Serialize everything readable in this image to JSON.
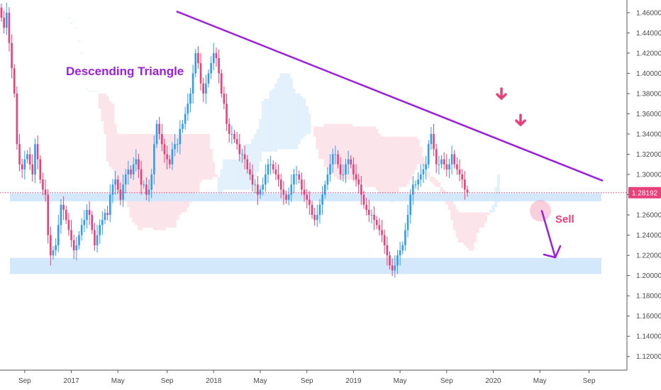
{
  "chart_data": {
    "type": "candlestick",
    "ylim": [
      1.11,
      1.47
    ],
    "y_ticks": [
      "1.12000",
      "1.14000",
      "1.16000",
      "1.18000",
      "1.20000",
      "1.22000",
      "1.24000",
      "1.26000",
      "1.28000",
      "1.30000",
      "1.32000",
      "1.34000",
      "1.36000",
      "1.38000",
      "1.40000",
      "1.42000",
      "1.44000",
      "1.46000"
    ],
    "x_ticks": [
      {
        "label": "Sep",
        "index": 9
      },
      {
        "label": "2017",
        "index": 27
      },
      {
        "label": "May",
        "index": 45
      },
      {
        "label": "Sep",
        "index": 64
      },
      {
        "label": "2018",
        "index": 82
      },
      {
        "label": "May",
        "index": 100
      },
      {
        "label": "Sep",
        "index": 118
      },
      {
        "label": "2019",
        "index": 136
      },
      {
        "label": "May",
        "index": 154
      },
      {
        "label": "Sep",
        "index": 172
      },
      {
        "label": "2020",
        "index": 190
      },
      {
        "label": "May",
        "index": 208
      },
      {
        "label": "Sep",
        "index": 227
      }
    ],
    "current_price": {
      "label": "1.28192",
      "value": 1.28192
    },
    "close_series": [
      1.455,
      1.445,
      1.46,
      1.43,
      1.405,
      1.38,
      1.33,
      1.31,
      1.305,
      1.315,
      1.32,
      1.31,
      1.3,
      1.33,
      1.315,
      1.295,
      1.285,
      1.28,
      1.24,
      1.22,
      1.225,
      1.23,
      1.25,
      1.27,
      1.265,
      1.255,
      1.245,
      1.235,
      1.225,
      1.23,
      1.24,
      1.25,
      1.255,
      1.265,
      1.26,
      1.245,
      1.23,
      1.24,
      1.25,
      1.255,
      1.262,
      1.26,
      1.28,
      1.29,
      1.295,
      1.285,
      1.275,
      1.29,
      1.3,
      1.305,
      1.3,
      1.31,
      1.315,
      1.305,
      1.29,
      1.29,
      1.28,
      1.285,
      1.3,
      1.33,
      1.35,
      1.34,
      1.33,
      1.32,
      1.315,
      1.31,
      1.325,
      1.33,
      1.33,
      1.345,
      1.35,
      1.36,
      1.37,
      1.38,
      1.4,
      1.42,
      1.41,
      1.39,
      1.38,
      1.39,
      1.4,
      1.41,
      1.42,
      1.415,
      1.4,
      1.38,
      1.37,
      1.35,
      1.34,
      1.34,
      1.335,
      1.33,
      1.32,
      1.32,
      1.315,
      1.305,
      1.3,
      1.29,
      1.29,
      1.28,
      1.285,
      1.29,
      1.3,
      1.31,
      1.31,
      1.305,
      1.3,
      1.295,
      1.285,
      1.28,
      1.275,
      1.28,
      1.29,
      1.3,
      1.3,
      1.295,
      1.285,
      1.28,
      1.275,
      1.27,
      1.26,
      1.255,
      1.26,
      1.27,
      1.28,
      1.29,
      1.3,
      1.31,
      1.32,
      1.32,
      1.31,
      1.3,
      1.3,
      1.31,
      1.315,
      1.31,
      1.3,
      1.295,
      1.29,
      1.28,
      1.27,
      1.265,
      1.26,
      1.26,
      1.255,
      1.25,
      1.245,
      1.24,
      1.23,
      1.22,
      1.21,
      1.205,
      1.21,
      1.22,
      1.225,
      1.23,
      1.245,
      1.26,
      1.28,
      1.29,
      1.29,
      1.295,
      1.3,
      1.305,
      1.31,
      1.33,
      1.34,
      1.325,
      1.31,
      1.31,
      1.315,
      1.31,
      1.305,
      1.31,
      1.32,
      1.31,
      1.305,
      1.3,
      1.295,
      1.285,
      1.28192
    ],
    "annotations": [
      {
        "type": "trendline",
        "color": "#9b1fdc",
        "from": [
          0.268,
          1.461
        ],
        "to": [
          0.911,
          1.294
        ]
      },
      {
        "type": "support_zone",
        "color": "#cfe6fb",
        "from_index": 0,
        "to_index": 228,
        "y_range": [
          1.2735,
          1.2815
        ]
      },
      {
        "type": "support_zone",
        "color": "#cfe6fb",
        "from_index": 0,
        "to_index": 228,
        "y_range": [
          1.2015,
          1.2175
        ]
      },
      {
        "type": "down_arrow",
        "color": "#e8407a"
      },
      {
        "type": "down_arrow",
        "color": "#e8407a"
      },
      {
        "type": "projection_arrow",
        "color": "#9b1fdc"
      }
    ],
    "labels": {
      "pattern": "Descending Triangle",
      "signal": "Sell"
    },
    "colors": {
      "up": "#2e9ef0",
      "down": "#e8407a",
      "cloud_bear": "#fce0e6",
      "cloud_bull": "#ddeefc",
      "price_tag": "#e8407a"
    }
  }
}
